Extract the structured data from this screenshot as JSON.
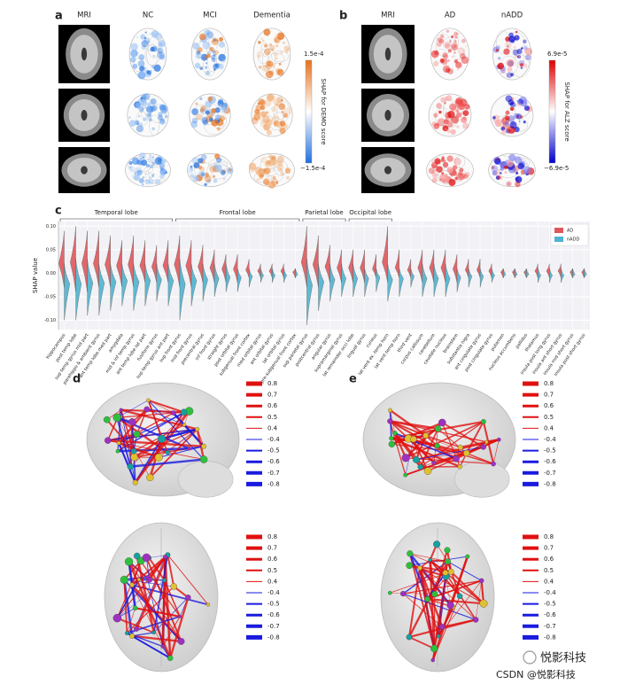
{
  "panel_a": {
    "label": "a",
    "columns": [
      "MRI",
      "NC",
      "MCI",
      "Dementia"
    ],
    "colorbar": {
      "max": "1.5e-4",
      "min": "−1.5e-4",
      "title": "SHAP for DEMO score"
    }
  },
  "panel_b": {
    "label": "b",
    "columns": [
      "MRI",
      "AD",
      "nADD"
    ],
    "colorbar": {
      "max": "6.9e-5",
      "min": "−6.9e-5",
      "title": "SHAP for ALZ score"
    }
  },
  "chart_data": {
    "type": "violin",
    "label": "c",
    "ylabel": "SHAP value",
    "groups": [
      "Temporal lobe",
      "Frontal lobe",
      "Parietal lobe",
      "Occipital lobe"
    ],
    "categories": [
      "hippocampus",
      "post temp lobe",
      "sup temp gyrus mid part",
      "parahippo & ambient gyrus",
      "ant temp lobe med part",
      "amygdala",
      "mid & inf temp gyrus",
      "ant temp lobe lat part",
      "fusiform gyrus",
      "sup temp gyrus ant part",
      "sup front gyrus",
      "mid front gyrus",
      "precentral gyrus",
      "inf front gyrus",
      "straight gyrus",
      "post orbital gyrus",
      "subgenual front cortex",
      "med orbital gyrus",
      "ant orbital gyrus",
      "lat orbital gyrus",
      "pre-subgenual front cortex",
      "sup parietal gyrus",
      "postcentral gyrus",
      "angular gyrus",
      "supramarginal gyrus",
      "lat remainder occi lobe",
      "lingual gyrus",
      "cuneus",
      "lat vent ex. temp horn",
      "lat vent temp horn",
      "third vent",
      "corpus callosum",
      "cerebellum",
      "caudate nucleus",
      "brainstem",
      "substantia nigra",
      "ant cingulate gyrus",
      "post cingulate gyrus",
      "putamen",
      "nucleus accumbens",
      "pallidus",
      "thalamus",
      "insula post long gyrus",
      "insula ant short gyrus",
      "insula mid short gyrus",
      "insula post short gyrus"
    ],
    "series": [
      {
        "name": "AD",
        "color": "#e0575b",
        "values": [
          [
            -0.03,
            0.09
          ],
          [
            -0.04,
            0.1
          ],
          [
            -0.04,
            0.09
          ],
          [
            -0.03,
            0.09
          ],
          [
            -0.03,
            0.08
          ],
          [
            -0.03,
            0.07
          ],
          [
            -0.03,
            0.08
          ],
          [
            -0.02,
            0.07
          ],
          [
            -0.02,
            0.06
          ],
          [
            -0.02,
            0.07
          ],
          [
            -0.03,
            0.08
          ],
          [
            -0.03,
            0.07
          ],
          [
            -0.02,
            0.06
          ],
          [
            -0.02,
            0.05
          ],
          [
            -0.02,
            0.04
          ],
          [
            -0.02,
            0.04
          ],
          [
            -0.01,
            0.03
          ],
          [
            -0.01,
            0.02
          ],
          [
            -0.01,
            0.02
          ],
          [
            -0.01,
            0.02
          ],
          [
            -0.01,
            0.01
          ],
          [
            -0.03,
            0.1
          ],
          [
            -0.03,
            0.08
          ],
          [
            -0.02,
            0.06
          ],
          [
            -0.02,
            0.05
          ],
          [
            -0.02,
            0.05
          ],
          [
            -0.02,
            0.05
          ],
          [
            -0.01,
            0.04
          ],
          [
            -0.02,
            0.1
          ],
          [
            -0.01,
            0.05
          ],
          [
            -0.01,
            0.03
          ],
          [
            -0.02,
            0.05
          ],
          [
            -0.02,
            0.05
          ],
          [
            -0.02,
            0.05
          ],
          [
            -0.02,
            0.04
          ],
          [
            -0.01,
            0.03
          ],
          [
            -0.01,
            0.03
          ],
          [
            -0.01,
            0.02
          ],
          [
            -0.01,
            0.01
          ],
          [
            -0.01,
            0.01
          ],
          [
            -0.01,
            0.01
          ],
          [
            -0.01,
            0.02
          ],
          [
            -0.01,
            0.02
          ],
          [
            -0.01,
            0.02
          ],
          [
            -0.01,
            0.01
          ],
          [
            -0.01,
            0.01
          ]
        ]
      },
      {
        "name": "nADD",
        "color": "#4fb3cf",
        "values": [
          [
            -0.1,
            0.02
          ],
          [
            -0.1,
            0.03
          ],
          [
            -0.09,
            0.03
          ],
          [
            -0.09,
            0.02
          ],
          [
            -0.08,
            0.02
          ],
          [
            -0.07,
            0.02
          ],
          [
            -0.08,
            0.02
          ],
          [
            -0.07,
            0.02
          ],
          [
            -0.06,
            0.02
          ],
          [
            -0.07,
            0.02
          ],
          [
            -0.1,
            0.03
          ],
          [
            -0.07,
            0.02
          ],
          [
            -0.06,
            0.02
          ],
          [
            -0.05,
            0.02
          ],
          [
            -0.04,
            0.02
          ],
          [
            -0.04,
            0.01
          ],
          [
            -0.03,
            0.01
          ],
          [
            -0.02,
            0.01
          ],
          [
            -0.02,
            0.01
          ],
          [
            -0.02,
            0.01
          ],
          [
            -0.01,
            0.01
          ],
          [
            -0.11,
            0.03
          ],
          [
            -0.08,
            0.02
          ],
          [
            -0.06,
            0.02
          ],
          [
            -0.05,
            0.02
          ],
          [
            -0.05,
            0.02
          ],
          [
            -0.05,
            0.01
          ],
          [
            -0.04,
            0.01
          ],
          [
            -0.06,
            0.02
          ],
          [
            -0.05,
            0.01
          ],
          [
            -0.03,
            0.01
          ],
          [
            -0.05,
            0.02
          ],
          [
            -0.05,
            0.02
          ],
          [
            -0.05,
            0.02
          ],
          [
            -0.04,
            0.01
          ],
          [
            -0.03,
            0.01
          ],
          [
            -0.03,
            0.01
          ],
          [
            -0.02,
            0.01
          ],
          [
            -0.01,
            0.01
          ],
          [
            -0.01,
            0.01
          ],
          [
            -0.01,
            0.01
          ],
          [
            -0.02,
            0.01
          ],
          [
            -0.02,
            0.01
          ],
          [
            -0.02,
            0.01
          ],
          [
            -0.01,
            0.01
          ],
          [
            -0.01,
            0.01
          ]
        ]
      }
    ],
    "ylim": [
      -0.12,
      0.11
    ],
    "yticks": [
      {
        "value": -0.1,
        "label": "-0.10"
      },
      -0.05,
      {
        "value": 0,
        "label": "0.00"
      },
      0.05,
      {
        "value": 0.1,
        "label": "0.10"
      }
    ],
    "grid": true,
    "legend": "upper right"
  },
  "panel_d": {
    "label": "d",
    "legends": [
      [
        0.8,
        0.7,
        0.6,
        0.5,
        0.4,
        -0.4,
        -0.5,
        -0.6,
        -0.7,
        -0.8
      ],
      [
        0.8,
        0.7,
        0.6,
        0.5,
        0.4,
        -0.4,
        -0.5,
        -0.6,
        -0.7,
        -0.8
      ]
    ]
  },
  "panel_e": {
    "label": "e",
    "legends": [
      [
        0.8,
        0.7,
        0.6,
        0.5,
        0.4,
        -0.4,
        -0.5,
        -0.6,
        -0.7,
        -0.8
      ],
      [
        0.8,
        0.7,
        0.6,
        0.5,
        0.4,
        -0.4,
        -0.5,
        -0.6,
        -0.7,
        -0.8
      ]
    ]
  },
  "watermark": {
    "logo_text": "悦影科技",
    "text": "CSDN @悦影科技"
  }
}
